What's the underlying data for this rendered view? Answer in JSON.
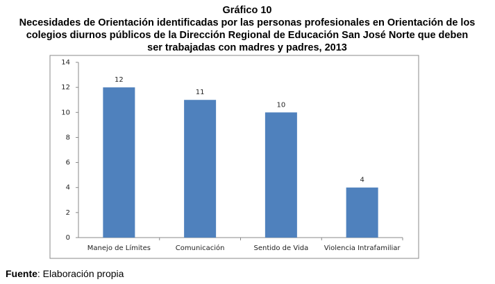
{
  "chart_data": {
    "type": "bar",
    "title": "Gráfico 10",
    "subtitle": [
      "Necesidades de Orientación identificadas por las personas profesionales en Orientación de los",
      "colegios diurnos públicos de la Dirección Regional de Educación San José Norte que deben",
      "ser trabajadas con madres y padres, 2013"
    ],
    "categories": [
      "Manejo de Límites",
      "Comunicación",
      "Sentido de Vida",
      "Violencia Intrafamiliar"
    ],
    "values": [
      12,
      11,
      10,
      4
    ],
    "color": "#4f81bd",
    "ylim": [
      0,
      14
    ],
    "yticks": [
      0,
      2,
      4,
      6,
      8,
      10,
      12,
      14
    ],
    "grid": false,
    "source_label": "Fuente",
    "source": ": Elaboración propia"
  }
}
